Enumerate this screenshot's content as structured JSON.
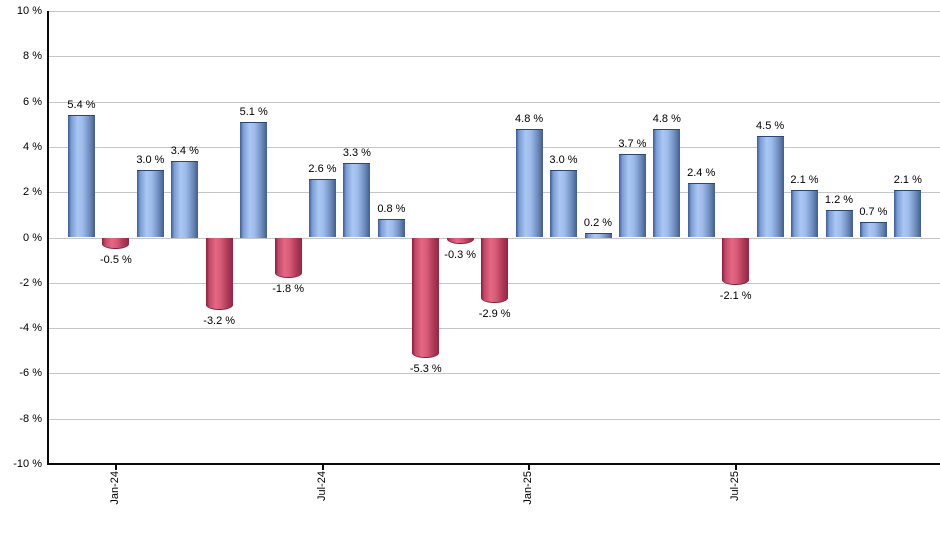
{
  "chart_data": {
    "type": "bar",
    "title": "",
    "xlabel": "",
    "ylabel": "",
    "ylim": [
      -10,
      10
    ],
    "y_tick_step": 2,
    "grid": true,
    "legend": false,
    "values": [
      5.4,
      -0.5,
      3.0,
      3.4,
      -3.2,
      5.1,
      -1.8,
      2.6,
      3.3,
      0.8,
      -5.3,
      -0.3,
      -2.9,
      4.8,
      3.0,
      0.2,
      3.7,
      4.8,
      2.4,
      -2.1,
      4.5,
      2.1,
      1.2,
      0.7,
      2.1
    ],
    "bar_labels": [
      "5.4 %",
      "-0.5 %",
      "3.0 %",
      "3.4 %",
      "-3.2 %",
      "5.1 %",
      "-1.8 %",
      "2.6 %",
      "3.3 %",
      "0.8 %",
      "-5.3 %",
      "-0.3 %",
      "-2.9 %",
      "4.8 %",
      "3.0 %",
      "0.2 %",
      "3.7 %",
      "4.8 %",
      "2.4 %",
      "-2.1 %",
      "4.5 %",
      "2.1 %",
      "1.2 %",
      "0.7 %",
      "2.1 %"
    ],
    "x_ticks": [
      {
        "index": 1,
        "label": "Jan-24"
      },
      {
        "index": 7,
        "label": "Jul-24"
      },
      {
        "index": 13,
        "label": "Jan-25"
      },
      {
        "index": 19,
        "label": "Jul-25"
      }
    ],
    "y_tick_labels": [
      "10 %",
      "8 %",
      "6 %",
      "4 %",
      "2 %",
      "0 %",
      "-2 %",
      "-4 %",
      "-6 %",
      "-8 %",
      "-10 %"
    ],
    "y_tick_values": [
      10,
      8,
      6,
      4,
      2,
      0,
      -2,
      -4,
      -6,
      -8,
      -10
    ],
    "colors": {
      "positive_bar_light": "#abc8f3",
      "positive_bar_dark": "#3b5a98",
      "negative_bar_light": "#e56883",
      "negative_bar_dark": "#8c1c3c",
      "gridline": "#c6c6c6",
      "axis": "#0a0a0a",
      "text": "#000000",
      "background": "#ffffff"
    }
  }
}
